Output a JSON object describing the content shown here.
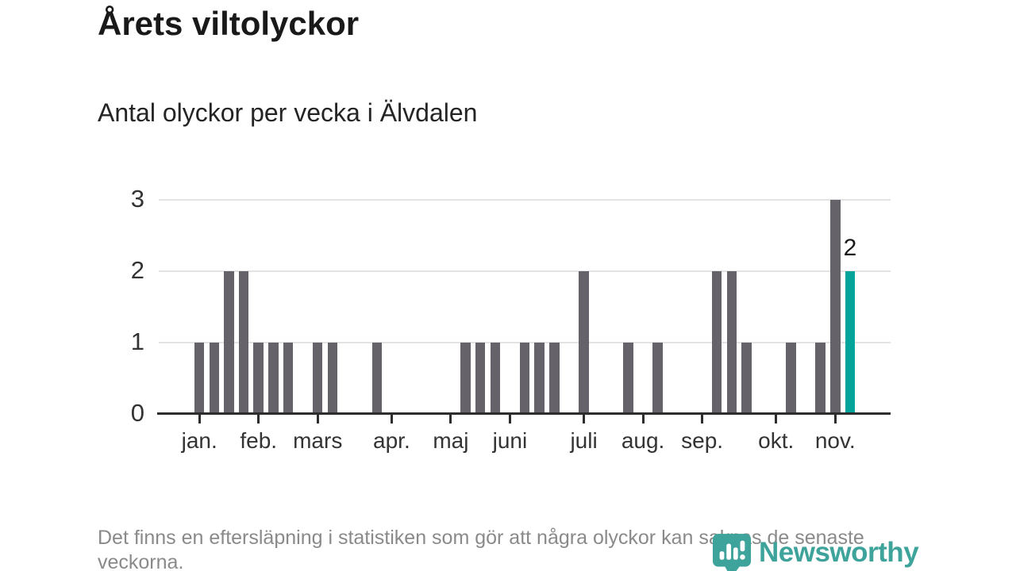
{
  "header": {
    "title": "Årets viltolyckor",
    "subtitle": "Antal olyckor per vecka i Älvdalen"
  },
  "chart_data": {
    "type": "bar",
    "title": "Årets viltolyckor",
    "subtitle": "Antal olyckor per vecka i Älvdalen",
    "x_unit": "week_of_year",
    "num_weeks": 49,
    "values": [
      0,
      0,
      1,
      1,
      2,
      2,
      1,
      1,
      1,
      0,
      1,
      1,
      0,
      0,
      1,
      0,
      0,
      0,
      0,
      0,
      1,
      1,
      1,
      0,
      1,
      1,
      1,
      0,
      2,
      0,
      0,
      1,
      0,
      1,
      0,
      0,
      0,
      2,
      2,
      1,
      0,
      0,
      1,
      0,
      1,
      3,
      2,
      0,
      0
    ],
    "ylim": [
      0,
      3
    ],
    "yticks": [
      0,
      1,
      2,
      3
    ],
    "grid": true,
    "month_ticks": [
      {
        "label": "jan.",
        "week": 3
      },
      {
        "label": "feb.",
        "week": 7
      },
      {
        "label": "mars",
        "week": 11
      },
      {
        "label": "apr.",
        "week": 16
      },
      {
        "label": "maj",
        "week": 20
      },
      {
        "label": "juni",
        "week": 24
      },
      {
        "label": "juli",
        "week": 29
      },
      {
        "label": "aug.",
        "week": 33
      },
      {
        "label": "sep.",
        "week": 37
      },
      {
        "label": "okt.",
        "week": 42
      },
      {
        "label": "nov.",
        "week": 46
      }
    ],
    "highlight": {
      "week": 47,
      "value": 2,
      "label": "2"
    },
    "colors": {
      "bar": "#656369",
      "highlight": "#00a49b",
      "grid": "#e3e3e3",
      "axis": "#2d2d2d",
      "axis_text": "#333333",
      "value_label": "#1a1a1a"
    }
  },
  "footer": {
    "note": "Det finns en eftersläpning i statistiken som gör att några olyckor kan saknas de senaste veckorna."
  },
  "logo": {
    "name": "Newsworthy",
    "color": "#3ea39b",
    "icon": "bar-chart-pin-icon"
  }
}
